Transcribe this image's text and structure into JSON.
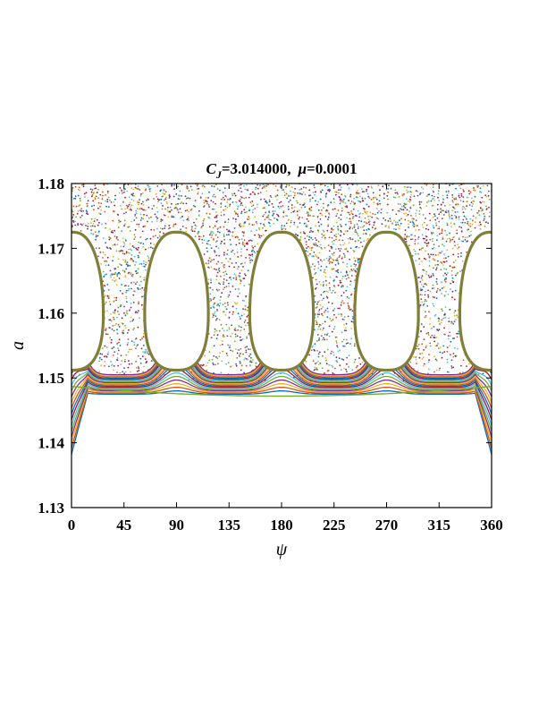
{
  "chart_data": {
    "type": "scatter",
    "title_parts": {
      "cj_symbol": "C",
      "cj_sub": "J",
      "cj_value": "=3.014000,",
      "mu_symbol": "μ",
      "mu_value": "=0.0001"
    },
    "xlabel": "ψ",
    "ylabel": "a",
    "xlim": [
      0,
      360
    ],
    "ylim": [
      1.13,
      1.18
    ],
    "xticks": [
      "0",
      "45",
      "90",
      "135",
      "180",
      "225",
      "270",
      "315",
      "360"
    ],
    "yticks": [
      "1.13",
      "1.14",
      "1.15",
      "1.16",
      "1.17",
      "1.18"
    ],
    "grid": false,
    "legend": "none",
    "islands": [
      {
        "center_psi": 0,
        "a_min": 1.1512,
        "a_max": 1.1725,
        "half_width_psi": 27
      },
      {
        "center_psi": 90,
        "a_min": 1.1512,
        "a_max": 1.1725,
        "half_width_psi": 27
      },
      {
        "center_psi": 180,
        "a_min": 1.1512,
        "a_max": 1.1725,
        "half_width_psi": 27
      },
      {
        "center_psi": 270,
        "a_min": 1.1512,
        "a_max": 1.1725,
        "half_width_psi": 27
      },
      {
        "center_psi": 360,
        "a_min": 1.1512,
        "a_max": 1.1725,
        "half_width_psi": 27
      }
    ],
    "chaotic_region": {
      "a_min": 1.149,
      "a_max": 1.18
    },
    "regular_curves": {
      "count": 18,
      "a_base_min": 1.1475,
      "a_base_max": 1.1505,
      "peak_psi": [
        0,
        90,
        180,
        270,
        360
      ]
    },
    "separatrix_color": "#7f7f3a",
    "series_colors": [
      "#0072bd",
      "#d95319",
      "#edb120",
      "#7e2f8e",
      "#77ac30",
      "#4dbeee",
      "#a2142f"
    ]
  }
}
